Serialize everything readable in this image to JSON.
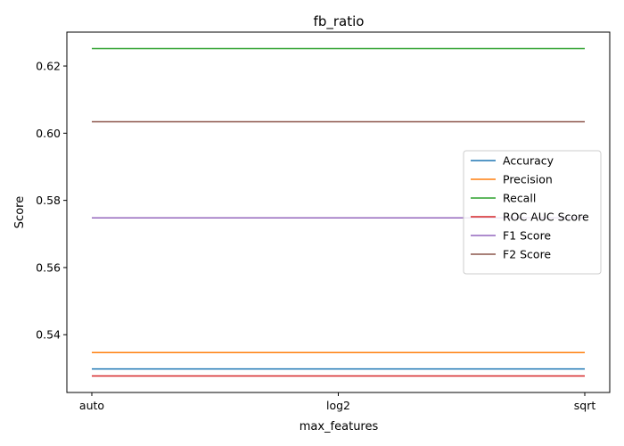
{
  "chart_data": {
    "type": "line",
    "title": "fb_ratio",
    "xlabel": "max_features",
    "ylabel": "Score",
    "categories": [
      "auto",
      "log2",
      "sqrt"
    ],
    "ylim": [
      0.5228,
      0.6301
    ],
    "yticks": [
      0.54,
      0.56,
      0.58,
      0.6,
      0.62
    ],
    "ytick_labels": [
      "0.54",
      "0.56",
      "0.58",
      "0.60",
      "0.62"
    ],
    "grid": false,
    "legend_position": "center-right",
    "series": [
      {
        "name": "Accuracy",
        "color": "#1f77b4",
        "values": [
          0.5298,
          0.5298,
          0.5298
        ]
      },
      {
        "name": "Precision",
        "color": "#ff7f0e",
        "values": [
          0.5347,
          0.5347,
          0.5347
        ]
      },
      {
        "name": "Recall",
        "color": "#2ca02c",
        "values": [
          0.6252,
          0.6252,
          0.6252
        ]
      },
      {
        "name": "ROC AUC Score",
        "color": "#d62728",
        "values": [
          0.5277,
          0.5277,
          0.5277
        ]
      },
      {
        "name": "F1 Score",
        "color": "#9467bd",
        "values": [
          0.5748,
          0.5748,
          0.5748
        ]
      },
      {
        "name": "F2 Score",
        "color": "#8c564b",
        "values": [
          0.6034,
          0.6034,
          0.6034
        ]
      }
    ]
  }
}
